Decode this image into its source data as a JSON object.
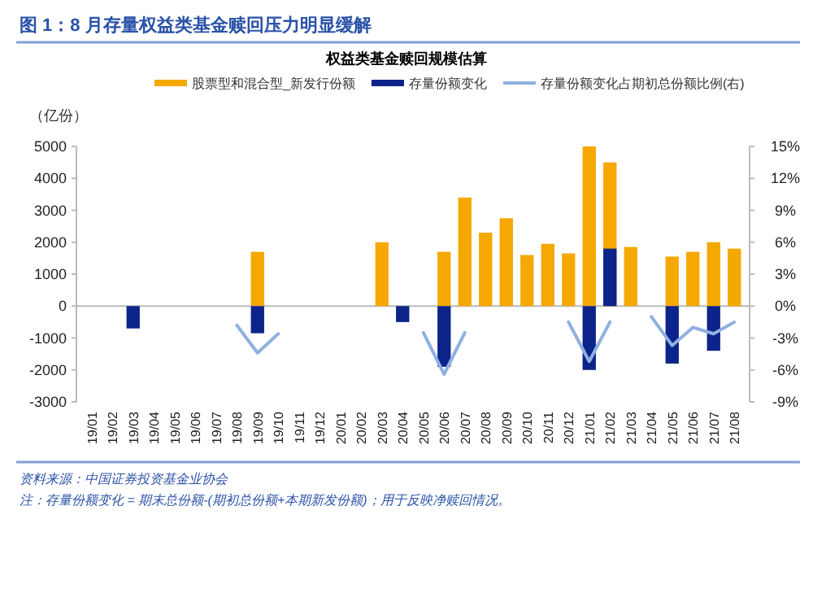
{
  "chart_data": {
    "type": "bar",
    "title": "图 1：8 月存量权益类基金赎回压力明显缓解",
    "subtitle": "权益类基金赎回规模估算",
    "ylabel": "（亿份）",
    "categories": [
      "19/01",
      "19/02",
      "19/03",
      "19/04",
      "19/05",
      "19/06",
      "19/07",
      "19/08",
      "19/09",
      "19/10",
      "19/11",
      "19/12",
      "20/01",
      "20/02",
      "20/03",
      "20/04",
      "20/05",
      "20/06",
      "20/07",
      "20/08",
      "20/09",
      "20/10",
      "20/11",
      "20/12",
      "21/01",
      "21/02",
      "21/03",
      "21/04",
      "21/05",
      "21/06",
      "21/07",
      "21/08"
    ],
    "series": [
      {
        "name": "股票型和混合型_新发行份额",
        "color": "#f5a800",
        "values": [
          null,
          null,
          null,
          null,
          null,
          null,
          null,
          null,
          1700,
          null,
          null,
          null,
          null,
          null,
          2000,
          null,
          null,
          1700,
          3400,
          2300,
          2750,
          1600,
          1950,
          1650,
          5000,
          4500,
          1850,
          null,
          1550,
          1700,
          2000,
          1800
        ]
      },
      {
        "name": "存量份额变化",
        "color": "#0c2389",
        "values": [
          null,
          null,
          -700,
          null,
          null,
          null,
          null,
          null,
          -850,
          null,
          null,
          null,
          null,
          null,
          null,
          -500,
          null,
          -1900,
          null,
          null,
          null,
          null,
          null,
          null,
          -2000,
          1800,
          null,
          null,
          -1800,
          null,
          -1400,
          null
        ]
      },
      {
        "name": "存量份额变化占期初总份额比例(右)",
        "color": "#8fb0e0",
        "type": "line",
        "axis": "y2",
        "values": [
          null,
          null,
          null,
          null,
          null,
          null,
          null,
          -1.8,
          -4.4,
          -2.6,
          null,
          null,
          null,
          null,
          null,
          null,
          -2.5,
          -6.4,
          -2.5,
          null,
          null,
          null,
          null,
          -1.5,
          -5.2,
          -1.5,
          null,
          -1,
          -3.7,
          -2,
          -2.6,
          -1.5
        ]
      }
    ],
    "ylim": [
      -3000,
      5000
    ],
    "yticks": [
      -3000,
      -2000,
      -1000,
      0,
      1000,
      2000,
      3000,
      4000,
      5000
    ],
    "y2lim": [
      -9,
      15
    ],
    "y2ticks": [
      {
        "value": -9,
        "label": "-9%"
      },
      {
        "value": -6,
        "label": "-6%"
      },
      {
        "value": -3,
        "label": "-3%"
      },
      {
        "value": 0,
        "label": "0%"
      },
      {
        "value": 3,
        "label": "3%"
      },
      {
        "value": 6,
        "label": "6%"
      },
      {
        "value": 9,
        "label": "9%"
      },
      {
        "value": 12,
        "label": "12%"
      },
      {
        "value": 15,
        "label": "15%"
      }
    ],
    "legend": "top",
    "annotations": [
      "资料来源：中国证券投资基金业协会",
      "注：存量份额变化 = 期末总份额-(期初总份额+本期新发份额)；用于反映净赎回情况。"
    ]
  }
}
